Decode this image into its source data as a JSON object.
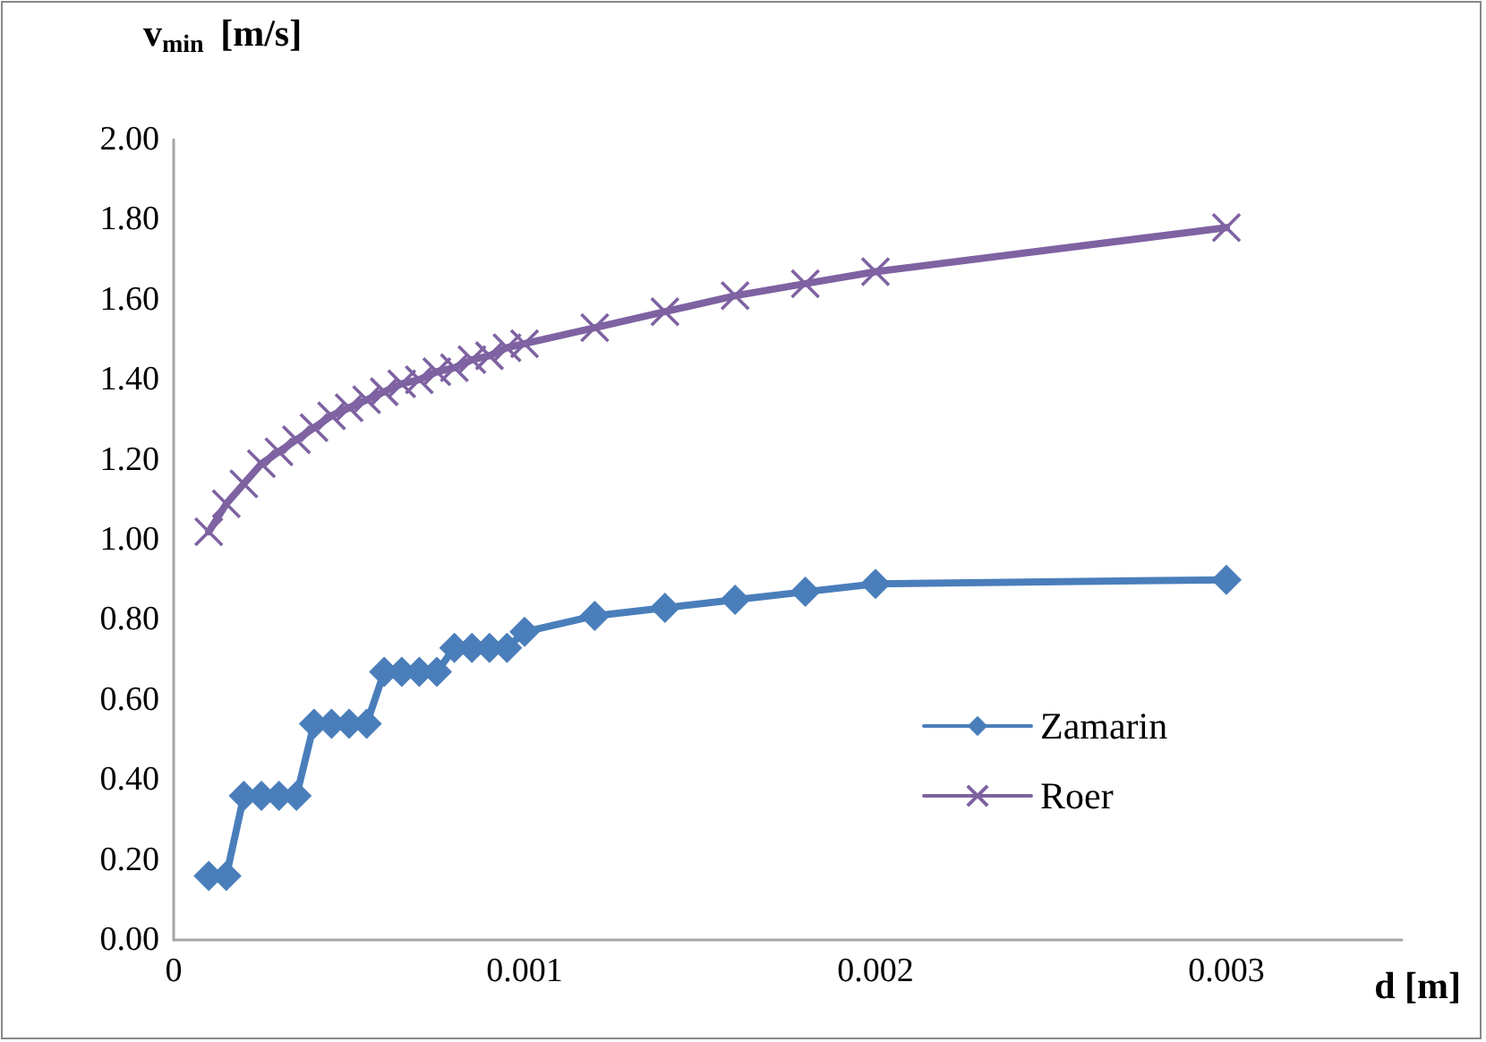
{
  "chart_data": {
    "type": "line",
    "xlabel": "d [m]",
    "ylabel": "v$_{min}$ [m/s]",
    "x": [
      0.0001,
      0.00015,
      0.0002,
      0.00025,
      0.0003,
      0.00035,
      0.0004,
      0.00045,
      0.0005,
      0.00055,
      0.0006,
      0.00065,
      0.0007,
      0.00075,
      0.0008,
      0.00085,
      0.0009,
      0.00095,
      0.001,
      0.0012,
      0.0014,
      0.0016,
      0.0018,
      0.002,
      0.003
    ],
    "series": [
      {
        "name": "Zamarin",
        "color": "#4a7ebb",
        "marker": "diamond",
        "values": [
          0.16,
          0.16,
          0.36,
          0.36,
          0.36,
          0.36,
          0.54,
          0.54,
          0.54,
          0.54,
          0.67,
          0.67,
          0.67,
          0.67,
          0.73,
          0.73,
          0.73,
          0.73,
          0.77,
          0.81,
          0.83,
          0.85,
          0.87,
          0.89,
          0.9
        ]
      },
      {
        "name": "Roer",
        "color": "#7e62a1",
        "marker": "cross",
        "values": [
          1.02,
          1.09,
          1.14,
          1.19,
          1.22,
          1.25,
          1.28,
          1.31,
          1.33,
          1.35,
          1.37,
          1.39,
          1.4,
          1.42,
          1.43,
          1.45,
          1.46,
          1.48,
          1.49,
          1.53,
          1.57,
          1.61,
          1.64,
          1.67,
          1.78
        ]
      }
    ],
    "xlim": [
      0,
      0.0035
    ],
    "xticks": [
      0,
      0.001,
      0.002,
      0.003
    ],
    "ylim": [
      0,
      2
    ],
    "yticks": [
      {
        "value": 0,
        "label": "0.00"
      },
      {
        "value": 0.2,
        "label": "0.20"
      },
      {
        "value": 0.4,
        "label": "0.40"
      },
      {
        "value": 0.6,
        "label": "0.60"
      },
      {
        "value": 0.8,
        "label": "0.80"
      },
      {
        "value": 1,
        "label": "1.00"
      },
      {
        "value": 1.2,
        "label": "1.20"
      },
      {
        "value": 1.4,
        "label": "1.40"
      },
      {
        "value": 1.6,
        "label": "1.60"
      },
      {
        "value": 1.8,
        "label": "1.80"
      },
      {
        "value": 2,
        "label": "2.00"
      }
    ],
    "grid": false,
    "legend": "right",
    "line_style": "solid"
  }
}
